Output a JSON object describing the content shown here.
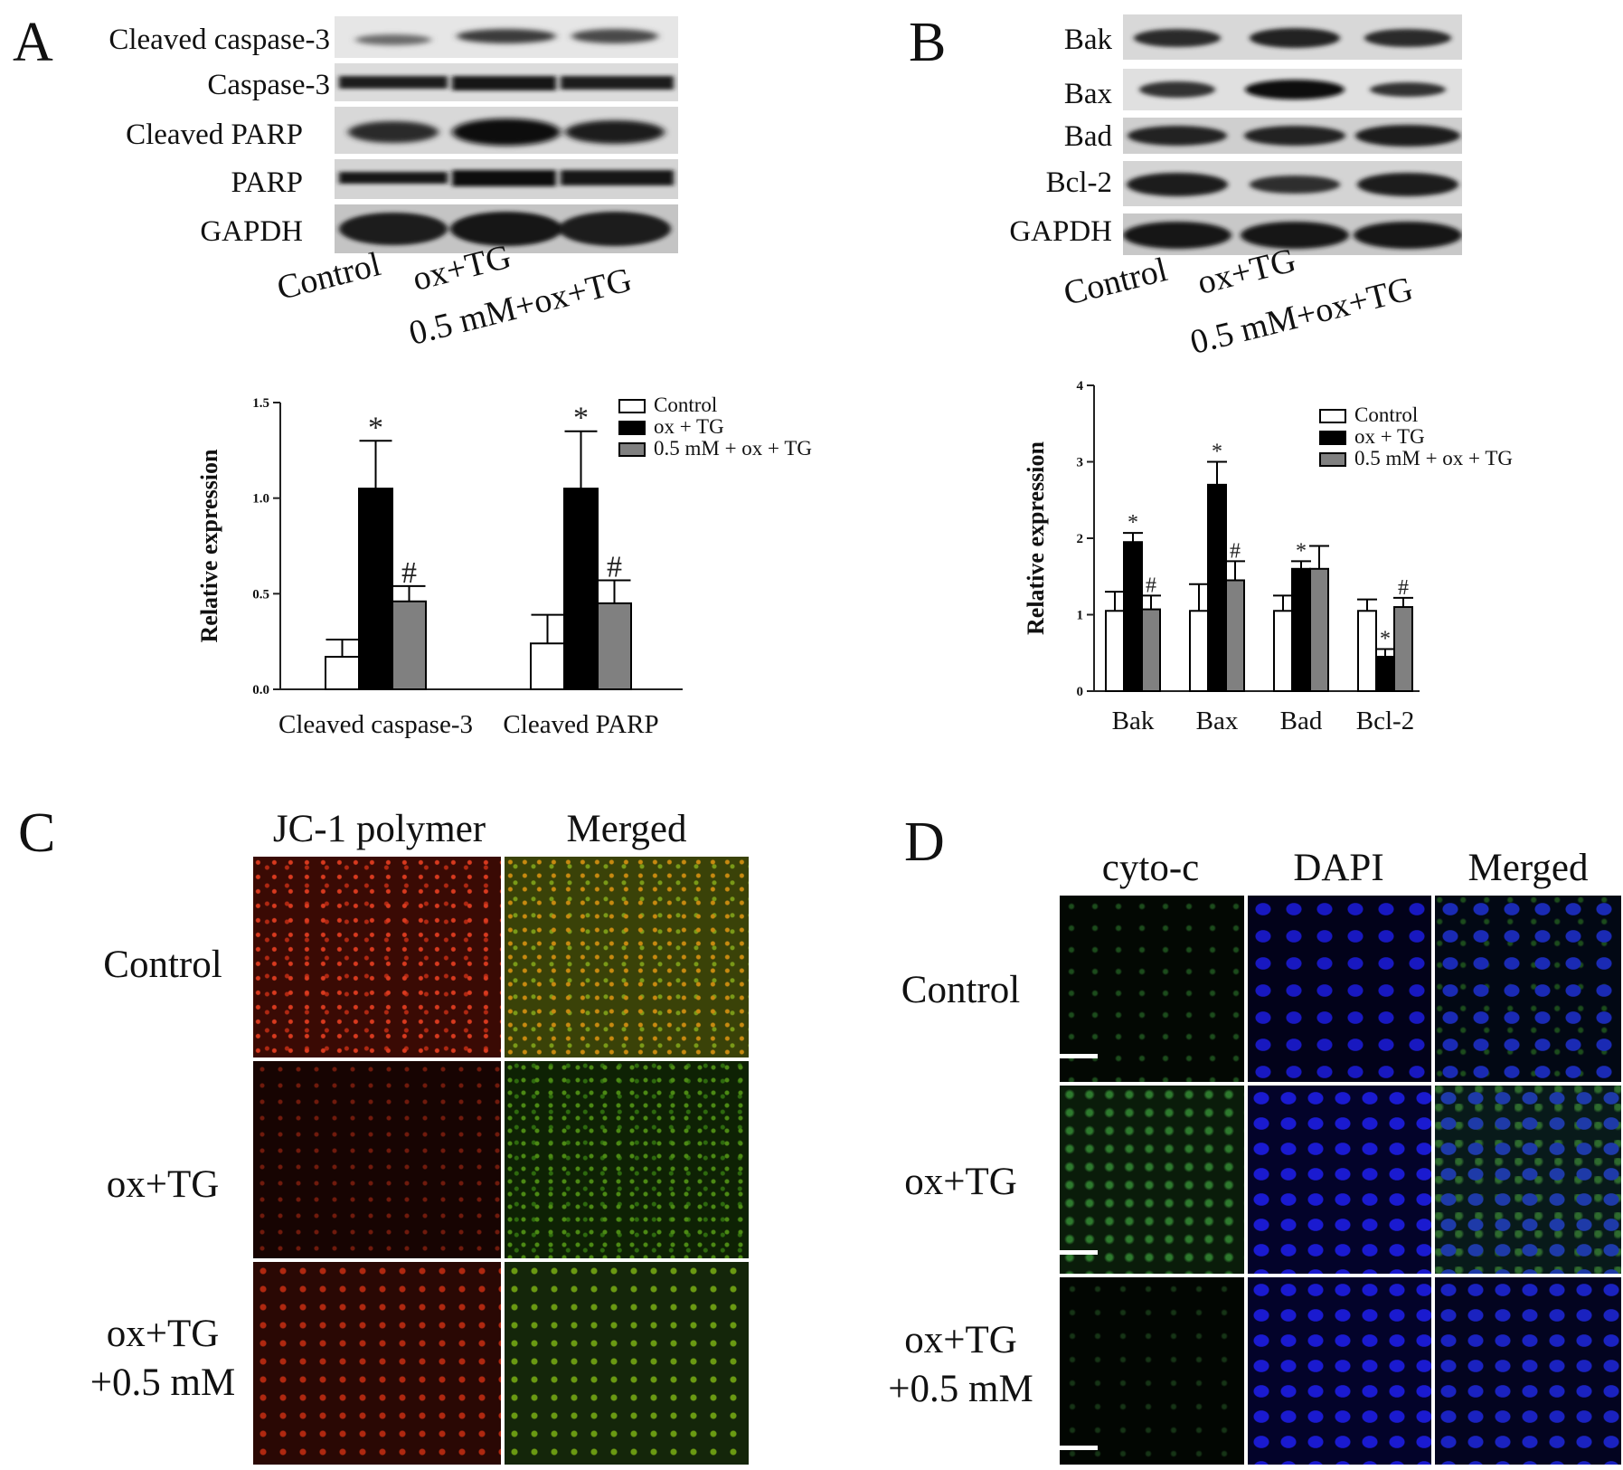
{
  "panels": {
    "A": {
      "letter": "A",
      "blot_labels": [
        "Cleaved caspase-3",
        "Caspase-3",
        "Cleaved PARP",
        "PARP",
        "GAPDH"
      ],
      "lanes": [
        "Control",
        "ox+TG",
        "0.5 mM+ox+TG"
      ]
    },
    "B": {
      "letter": "B",
      "blot_labels": [
        "Bak",
        "Bax",
        "Bad",
        "Bcl-2",
        "GAPDH"
      ],
      "lanes": [
        "Control",
        "ox+TG",
        "0.5 mM+ox+TG"
      ]
    },
    "C": {
      "letter": "C",
      "columns": [
        "JC-1 polymer",
        "Merged"
      ],
      "rows": [
        "Control",
        "ox+TG",
        "ox+TG\n+0.5 mM"
      ]
    },
    "D": {
      "letter": "D",
      "columns": [
        "cyto-c",
        "DAPI",
        "Merged"
      ],
      "rows": [
        "Control",
        "ox+TG",
        "ox+TG\n+0.5 mM"
      ]
    }
  },
  "colors": {
    "control": "#ffffff",
    "ox_tg": "#000000",
    "treated": "#808080",
    "jc1_red": "#c8281a",
    "merged_green": "#5a8a12",
    "dapi_blue": "#1a1ad0",
    "cyto_green": "#1e6a1e"
  },
  "chart_data": [
    {
      "type": "bar",
      "panel": "A",
      "categories": [
        "Cleaved caspase-3",
        "Cleaved PARP"
      ],
      "series": [
        {
          "name": "Control",
          "values": [
            0.17,
            0.24
          ],
          "errors": [
            0.09,
            0.15
          ],
          "marks": [
            "",
            ""
          ]
        },
        {
          "name": "ox + TG",
          "values": [
            1.05,
            1.05
          ],
          "errors": [
            0.25,
            0.3
          ],
          "marks": [
            "*",
            "*"
          ]
        },
        {
          "name": "0.5 mM + ox + TG",
          "values": [
            0.46,
            0.45
          ],
          "errors": [
            0.08,
            0.12
          ],
          "marks": [
            "#",
            "#"
          ]
        }
      ],
      "ylabel": "Relative  expression",
      "ylim": [
        0,
        1.5
      ],
      "yticks": [
        "0.0",
        "0.5",
        "1.0",
        "1.5"
      ],
      "legend": "top-right"
    },
    {
      "type": "bar",
      "panel": "B",
      "categories": [
        "Bak",
        "Bax",
        "Bad",
        "Bcl-2"
      ],
      "series": [
        {
          "name": "Control",
          "values": [
            1.05,
            1.05,
            1.05,
            1.05
          ],
          "errors": [
            0.25,
            0.35,
            0.2,
            0.15
          ],
          "marks": [
            "",
            "",
            "",
            ""
          ]
        },
        {
          "name": "ox + TG",
          "values": [
            1.95,
            2.7,
            1.6,
            0.45
          ],
          "errors": [
            0.12,
            0.3,
            0.1,
            0.1
          ],
          "marks": [
            "*",
            "*",
            "*",
            "*"
          ]
        },
        {
          "name": "0.5 mM + ox + TG",
          "values": [
            1.07,
            1.45,
            1.6,
            1.1
          ],
          "errors": [
            0.18,
            0.25,
            0.3,
            0.12
          ],
          "marks": [
            "#",
            "#",
            "",
            "#"
          ]
        }
      ],
      "ylabel": "Relative  expression",
      "ylim": [
        0,
        4
      ],
      "yticks": [
        "0",
        "1",
        "2",
        "3",
        "4"
      ],
      "legend": "top-right"
    }
  ]
}
